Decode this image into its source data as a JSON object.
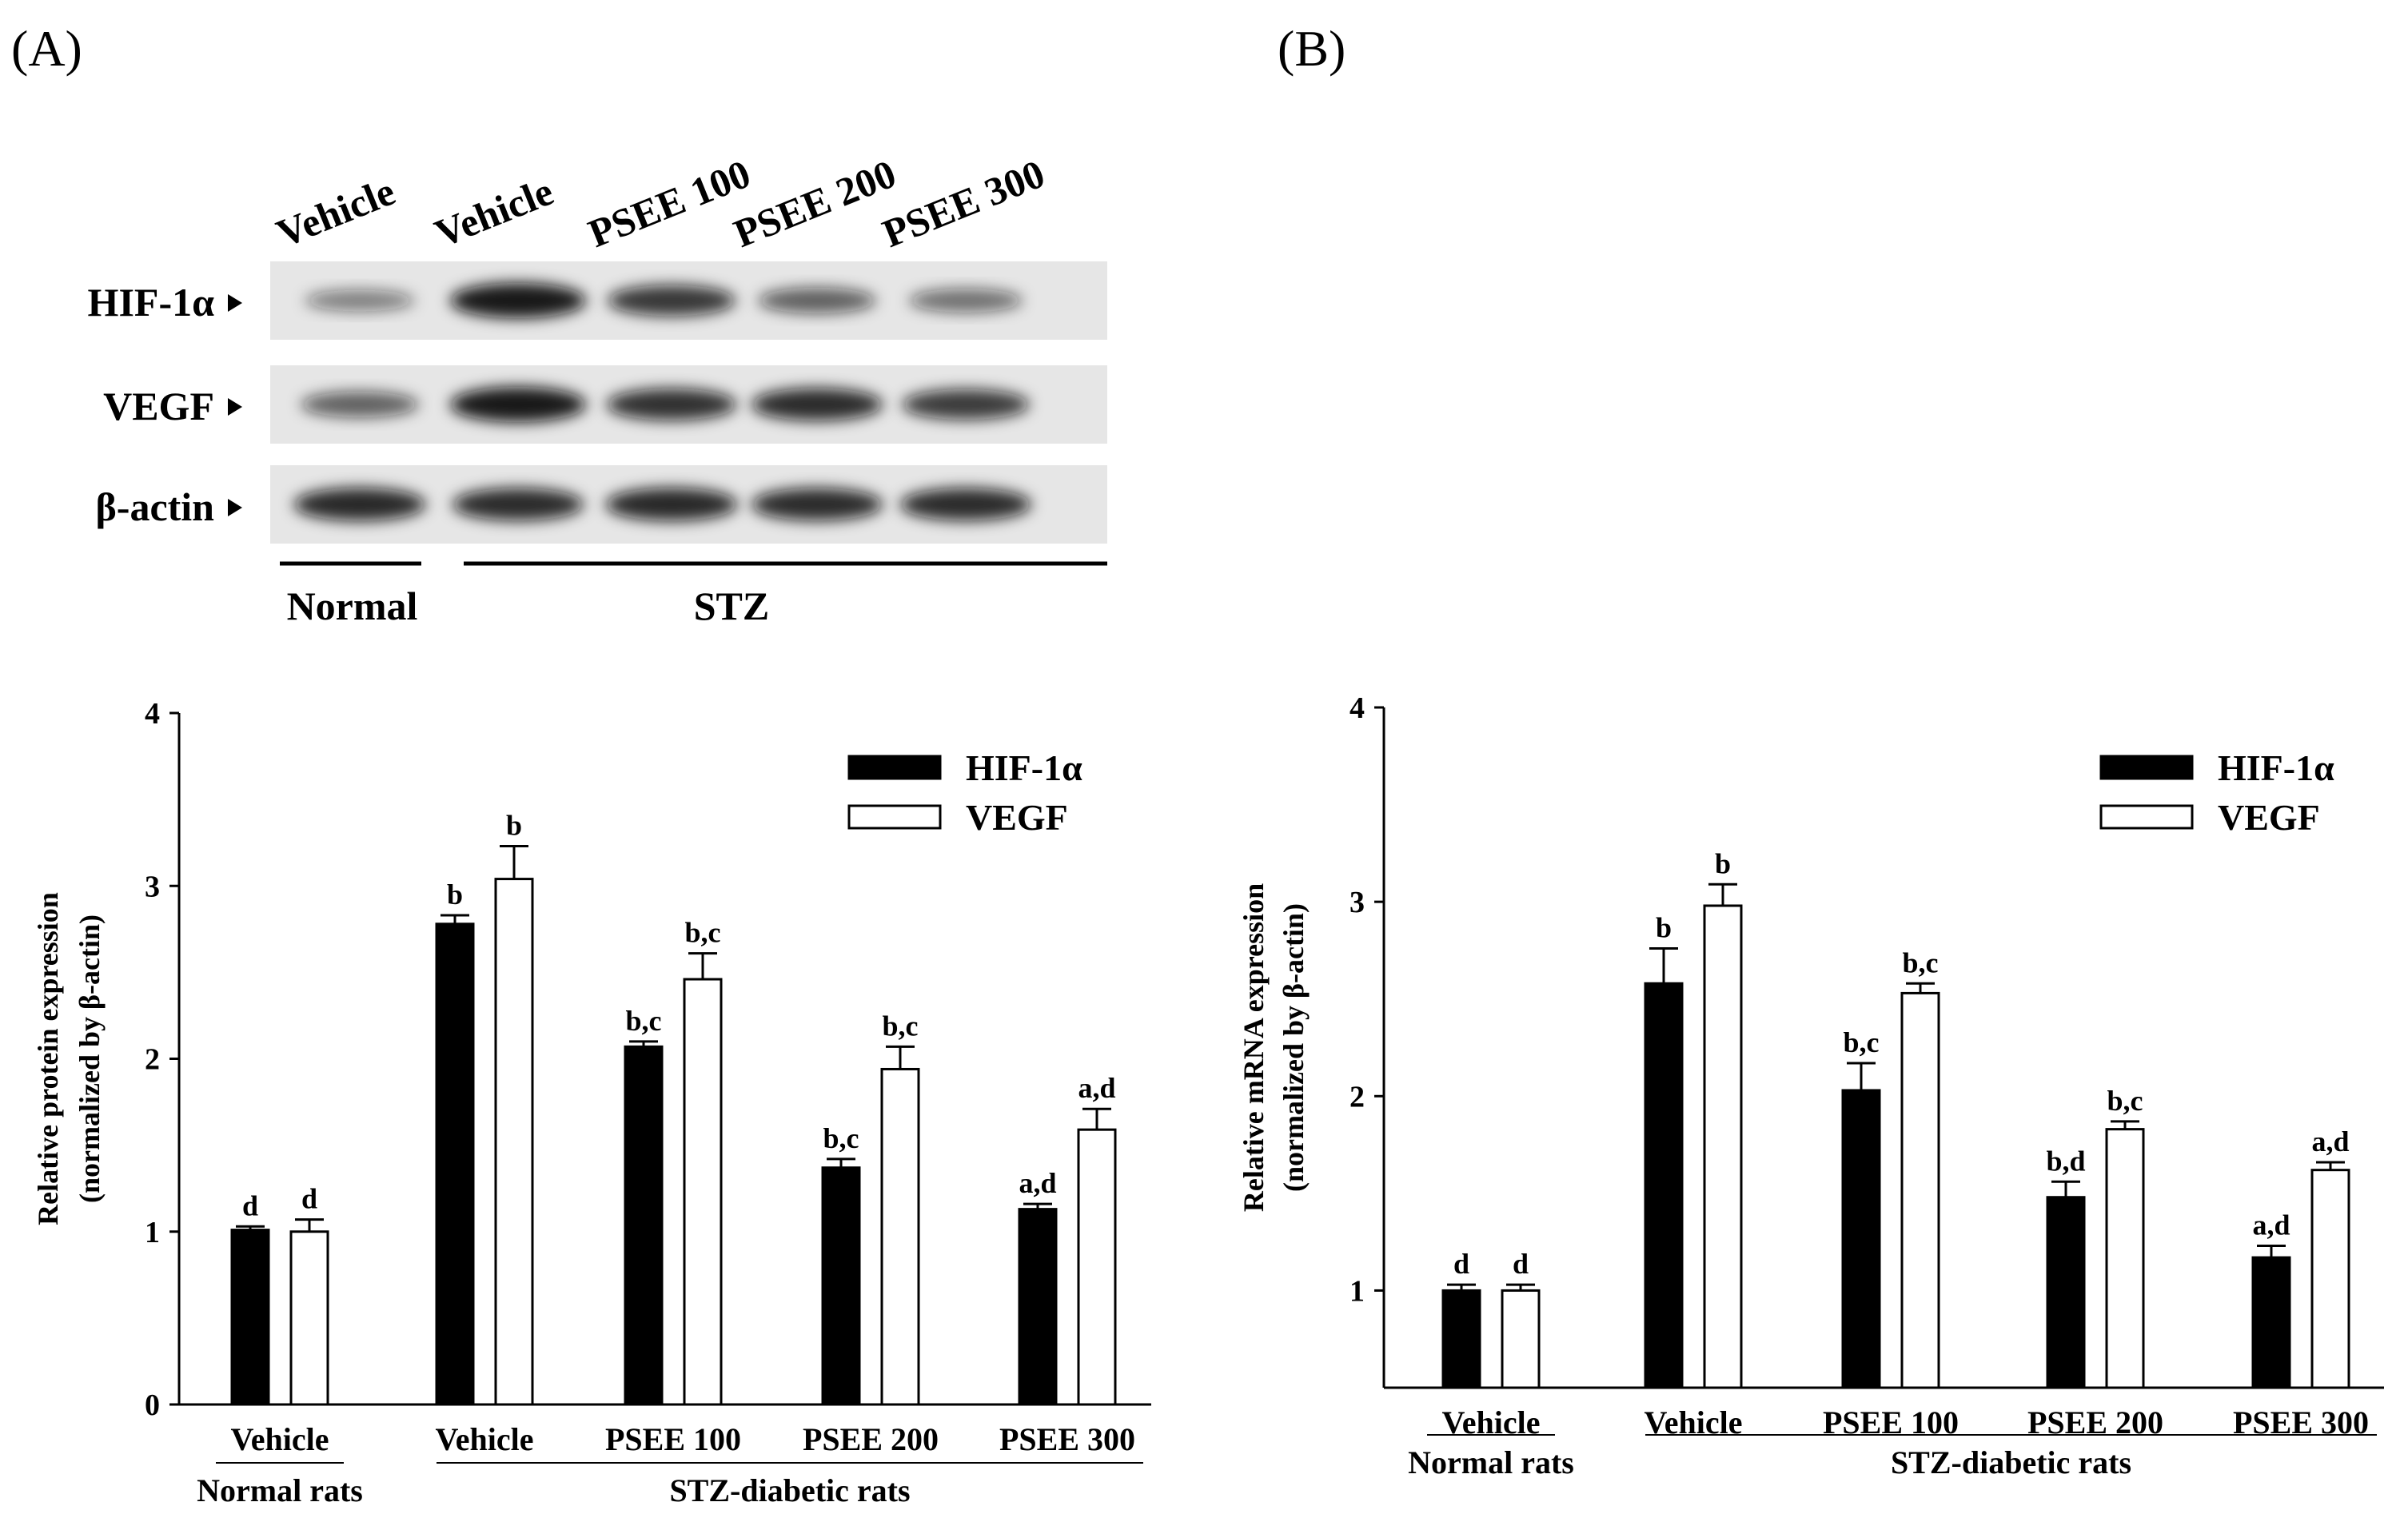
{
  "panels": {
    "a_label": "(A)",
    "b_label": "(B)"
  },
  "blot": {
    "lanes": [
      "Vehicle",
      "Vehicle",
      "PSEE 100",
      "PSEE 200",
      "PSEE 300"
    ],
    "rows": [
      {
        "label": "HIF-1α",
        "intensity": [
          0.35,
          1.0,
          0.8,
          0.55,
          0.45
        ]
      },
      {
        "label": "VEGF",
        "intensity": [
          0.55,
          1.0,
          0.85,
          0.88,
          0.78
        ]
      },
      {
        "label": "β-actin",
        "intensity": [
          0.9,
          0.88,
          0.9,
          0.88,
          0.88
        ]
      }
    ],
    "groups": [
      {
        "label": "Normal",
        "lanes": [
          0,
          0
        ]
      },
      {
        "label": "STZ",
        "lanes": [
          1,
          4
        ]
      }
    ],
    "colors": {
      "background": "#e6e6e6",
      "band": "#111111"
    }
  },
  "chart_data": [
    {
      "type": "bar",
      "categories": [
        "Vehicle",
        "Vehicle",
        "PSEE 100",
        "PSEE 200",
        "PSEE 300"
      ],
      "groups": [
        {
          "label": "Normal rats",
          "categories": [
            0,
            0
          ]
        },
        {
          "label": "STZ-diabetic rats",
          "categories": [
            1,
            4
          ]
        }
      ],
      "ylabel": "Relative protein expression",
      "ylabel2": "(normalized by β-actin)",
      "ylim": [
        0,
        4
      ],
      "yticks": [
        "0",
        "1",
        "2",
        "3",
        "4"
      ],
      "legend_position": "top-right",
      "series": [
        {
          "name": "HIF-1α",
          "color": "#000000",
          "values": [
            1.01,
            2.78,
            2.07,
            1.37,
            1.13
          ],
          "errors": [
            0.02,
            0.05,
            0.03,
            0.05,
            0.03
          ],
          "labels": [
            "d",
            "b",
            "b,c",
            "b,c",
            "a,d"
          ]
        },
        {
          "name": "VEGF",
          "color": "#ffffff",
          "values": [
            1.0,
            3.04,
            2.46,
            1.94,
            1.59
          ],
          "errors": [
            0.07,
            0.19,
            0.15,
            0.13,
            0.12
          ],
          "labels": [
            "d",
            "b",
            "b,c",
            "b,c",
            "a,d"
          ]
        }
      ]
    },
    {
      "type": "bar",
      "categories": [
        "Vehicle",
        "Vehicle",
        "PSEE 100",
        "PSEE 200",
        "PSEE 300"
      ],
      "groups": [
        {
          "label": "Normal rats",
          "categories": [
            0,
            0
          ]
        },
        {
          "label": "STZ-diabetic rats",
          "categories": [
            1,
            4
          ]
        }
      ],
      "ylabel": "Relative mRNA expression",
      "ylabel2": "(normalized by β-actin)",
      "ylim": [
        0.5,
        4
      ],
      "yticks": [
        "1",
        "2",
        "3",
        "4"
      ],
      "legend_position": "top-right",
      "series": [
        {
          "name": "HIF-1α",
          "color": "#000000",
          "values": [
            1.0,
            2.58,
            2.03,
            1.48,
            1.17
          ],
          "errors": [
            0.03,
            0.18,
            0.14,
            0.08,
            0.06
          ],
          "labels": [
            "d",
            "b",
            "b,c",
            "b,d",
            "a,d"
          ]
        },
        {
          "name": "VEGF",
          "color": "#ffffff",
          "values": [
            1.0,
            2.98,
            2.53,
            1.83,
            1.62
          ],
          "errors": [
            0.03,
            0.11,
            0.05,
            0.04,
            0.04
          ],
          "labels": [
            "d",
            "b",
            "b,c",
            "b,c",
            "a,d"
          ]
        }
      ]
    }
  ]
}
